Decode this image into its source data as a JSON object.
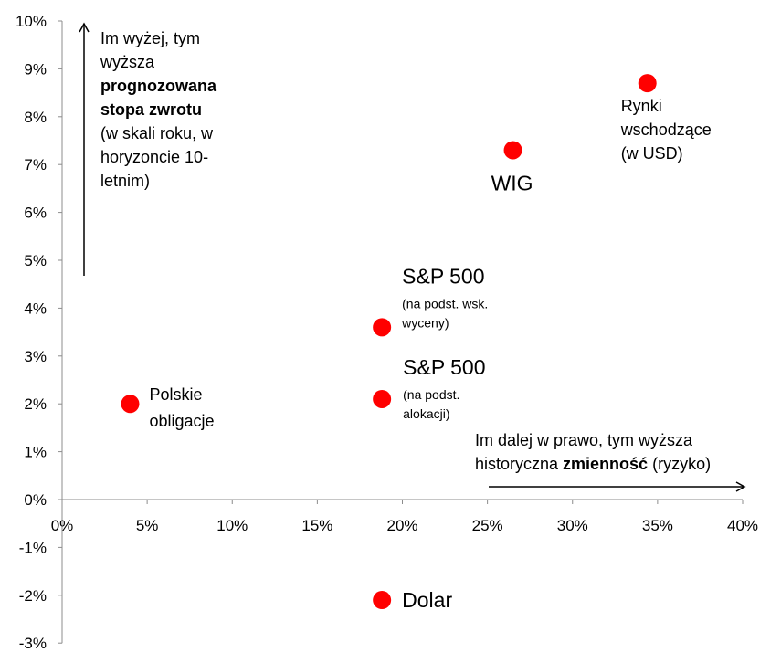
{
  "chart_data": {
    "type": "scatter",
    "title": "",
    "xlabel": "",
    "ylabel": "",
    "xlim": [
      0,
      40
    ],
    "ylim": [
      -3,
      10
    ],
    "x_ticks": [
      "0%",
      "5%",
      "10%",
      "15%",
      "20%",
      "25%",
      "30%",
      "35%",
      "40%"
    ],
    "y_ticks": [
      "10%",
      "9%",
      "8%",
      "7%",
      "6%",
      "5%",
      "4%",
      "3%",
      "2%",
      "1%",
      "0%",
      "-1%",
      "-2%",
      "-3%"
    ],
    "grid": false,
    "marker_color": "#ff0000",
    "points": [
      {
        "label": "Rynki",
        "label2": "wschodzące",
        "note": "(w USD)",
        "x": 34.4,
        "y": 8.7
      },
      {
        "label": "WIG",
        "x": 26.5,
        "y": 7.3
      },
      {
        "label": "S&P 500",
        "note": "(na podst. wsk.",
        "note2": "wyceny)",
        "x": 18.8,
        "y": 3.6
      },
      {
        "label": "S&P 500",
        "note": "(na podst.",
        "note2": "alokacji)",
        "x": 18.8,
        "y": 2.1
      },
      {
        "label": "Polskie",
        "label2": "obligacje",
        "x": 4.0,
        "y": 2.0
      },
      {
        "label": "Dolar",
        "x": 18.8,
        "y": -2.1
      }
    ],
    "annotations": {
      "vertical": {
        "line1": "Im wyżej, tym",
        "line2": "wyższa",
        "bold1": "prognozowana",
        "bold2": "stopa zwrotu",
        "line5": "(w skali roku, w",
        "line6": "horyzoncie 10-",
        "line7": "letnim)"
      },
      "horizontal": {
        "line1": "Im dalej w prawo, tym wyższa",
        "pre": "historyczna ",
        "bold": "zmienność",
        "post": " (ryzyko)"
      }
    }
  }
}
